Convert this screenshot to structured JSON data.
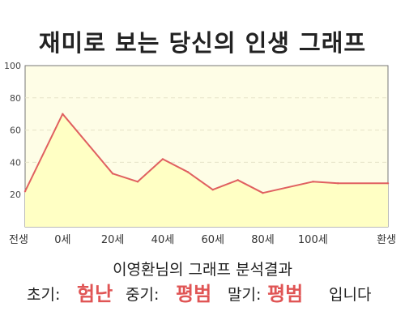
{
  "title": "재미로 보는 당신의 인생 그래프",
  "chart_data": {
    "type": "area",
    "x_tick_labels": [
      "전생",
      "0세",
      "20세",
      "40세",
      "60세",
      "80세",
      "100세",
      "환생"
    ],
    "y_ticks": [
      20,
      40,
      60,
      80,
      100
    ],
    "ylim": [
      0,
      100
    ],
    "grid": true,
    "series": [
      {
        "points": [
          [
            "전생",
            22
          ],
          [
            "0세",
            70
          ],
          [
            "20세",
            33
          ],
          [
            "30세",
            28
          ],
          [
            "40세",
            42
          ],
          [
            "50세",
            34
          ],
          [
            "60세",
            23
          ],
          [
            "70세",
            29
          ],
          [
            "80세",
            21
          ],
          [
            "100세",
            28
          ],
          [
            "110세",
            27
          ],
          [
            "환생",
            27
          ]
        ]
      }
    ],
    "colors": {
      "line": "#e06060",
      "fill": "#ffffc4",
      "plot_bg": "#fefde6"
    }
  },
  "result": {
    "title": "이영환님의 그래프 분석결과",
    "early_label": "초기:",
    "early_value": "험난",
    "mid_label": "중기:",
    "mid_value": "평범",
    "late_label": "말기:",
    "late_value": "평범",
    "ending": "입니다"
  }
}
